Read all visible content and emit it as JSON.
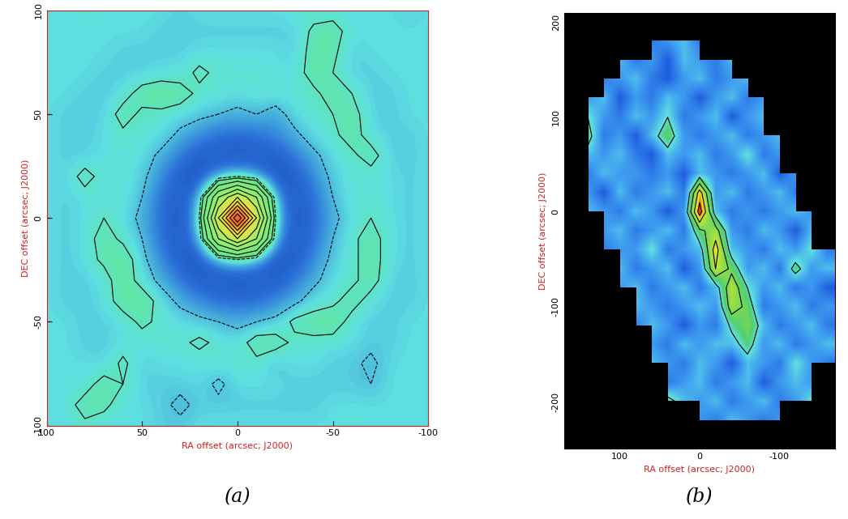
{
  "chart_data": [
    {
      "type": "heatmap",
      "caption": "(a)",
      "x_label": "RA offset (arcsec; J2000)",
      "y_label": "DEC offset (arcsec; J2000)",
      "xlim": [
        100,
        -100
      ],
      "ylim": [
        -100,
        100
      ],
      "xticks": [
        100,
        50,
        0,
        -50,
        -100
      ],
      "yticks": [
        -100,
        -50,
        0,
        50,
        100
      ],
      "x": [
        100,
        90,
        80,
        70,
        60,
        50,
        40,
        30,
        20,
        10,
        0,
        -10,
        -20,
        -30,
        -40,
        -50,
        -60,
        -70,
        -80,
        -90,
        -100
      ],
      "y": [
        100,
        90,
        80,
        70,
        60,
        50,
        40,
        30,
        20,
        10,
        0,
        -10,
        -20,
        -30,
        -40,
        -50,
        -60,
        -70,
        -80,
        -90,
        -100
      ],
      "color_range": [
        -0.15,
        1.0
      ],
      "contour_levels": [
        -0.02,
        0.02,
        0.1,
        0.2,
        0.3,
        0.4,
        0.5,
        0.6,
        0.7,
        0.8,
        0.9
      ],
      "cells": [
        [
          0.0,
          0.0,
          0.01,
          0.0,
          0.0,
          0.0,
          0.0,
          -0.01,
          0.0,
          0.0,
          0.0,
          0.0,
          0.0,
          0.01,
          0.0,
          0.0,
          0.0,
          0.0,
          0.0,
          -0.01,
          0.0
        ],
        [
          0.0,
          0.0,
          0.0,
          0.0,
          0.0,
          0.0,
          -0.01,
          -0.01,
          -0.01,
          -0.01,
          -0.01,
          -0.01,
          -0.01,
          -0.01,
          0.03,
          0.04,
          0.0,
          0.0,
          0.0,
          0.0,
          0.0
        ],
        [
          0.0,
          0.0,
          0.0,
          0.0,
          -0.01,
          -0.01,
          -0.01,
          -0.01,
          0.0,
          0.0,
          0.0,
          0.0,
          0.0,
          -0.01,
          0.04,
          0.03,
          -0.01,
          0.0,
          0.0,
          0.0,
          0.0
        ],
        [
          0.0,
          0.0,
          0.0,
          -0.01,
          -0.01,
          -0.01,
          0.0,
          0.0,
          0.03,
          0.01,
          0.01,
          0.01,
          0.0,
          0.0,
          0.04,
          0.02,
          -0.01,
          -0.01,
          0.0,
          0.0,
          0.0
        ],
        [
          0.0,
          0.0,
          -0.01,
          -0.01,
          0.0,
          0.04,
          0.05,
          0.04,
          0.01,
          0.01,
          0.0,
          0.01,
          0.01,
          0.01,
          0.01,
          0.04,
          0.02,
          -0.01,
          -0.01,
          0.0,
          0.0
        ],
        [
          0.0,
          -0.01,
          -0.01,
          -0.01,
          0.04,
          0.01,
          0.01,
          0.0,
          -0.01,
          -0.02,
          -0.03,
          -0.02,
          -0.04,
          0.0,
          0.01,
          0.02,
          0.04,
          -0.01,
          -0.01,
          0.0,
          0.0
        ],
        [
          0.0,
          -0.01,
          -0.01,
          0.0,
          0.01,
          0.01,
          0.0,
          -0.03,
          -0.05,
          -0.07,
          -0.07,
          -0.07,
          -0.05,
          -0.03,
          0.0,
          0.01,
          0.04,
          0.0,
          -0.01,
          -0.01,
          0.0
        ],
        [
          0.0,
          -0.01,
          -0.01,
          0.0,
          0.01,
          0.0,
          -0.03,
          -0.06,
          -0.09,
          -0.09,
          -0.1,
          -0.09,
          -0.09,
          -0.06,
          -0.03,
          0.0,
          0.01,
          0.04,
          -0.01,
          -0.01,
          0.0
        ],
        [
          0.0,
          -0.01,
          0.04,
          0.0,
          0.01,
          -0.01,
          -0.05,
          -0.09,
          -0.1,
          -0.05,
          -0.02,
          -0.05,
          -0.1,
          -0.09,
          -0.05,
          -0.01,
          0.01,
          0.0,
          0.0,
          -0.01,
          0.0
        ],
        [
          0.0,
          -0.01,
          0.0,
          0.0,
          0.01,
          -0.02,
          -0.07,
          -0.09,
          -0.05,
          0.3,
          0.5,
          0.3,
          -0.05,
          -0.09,
          -0.07,
          -0.02,
          0.01,
          0.01,
          0.0,
          -0.01,
          0.0
        ],
        [
          0.0,
          -0.01,
          0.0,
          0.02,
          0.0,
          -0.03,
          -0.07,
          -0.1,
          -0.02,
          0.5,
          1.0,
          0.5,
          -0.02,
          -0.1,
          -0.07,
          -0.03,
          0.0,
          0.02,
          0.0,
          -0.01,
          0.0
        ],
        [
          0.0,
          -0.01,
          0.0,
          0.04,
          0.01,
          -0.02,
          -0.07,
          -0.09,
          -0.05,
          0.3,
          0.5,
          0.3,
          -0.05,
          -0.09,
          -0.07,
          -0.02,
          0.01,
          0.04,
          0.0,
          -0.01,
          0.0
        ],
        [
          0.0,
          -0.01,
          0.0,
          0.03,
          0.05,
          -0.01,
          -0.05,
          -0.09,
          -0.1,
          -0.05,
          -0.02,
          -0.05,
          -0.1,
          -0.09,
          -0.05,
          -0.01,
          0.01,
          0.04,
          0.0,
          -0.01,
          0.0
        ],
        [
          0.0,
          -0.01,
          -0.01,
          0.0,
          0.05,
          0.0,
          -0.03,
          -0.06,
          -0.09,
          -0.09,
          -0.1,
          -0.09,
          -0.09,
          -0.06,
          -0.03,
          0.0,
          0.01,
          0.04,
          -0.01,
          -0.01,
          0.0
        ],
        [
          0.0,
          -0.01,
          -0.01,
          0.0,
          0.04,
          0.05,
          0.0,
          -0.03,
          -0.05,
          -0.07,
          -0.07,
          -0.07,
          -0.05,
          -0.03,
          0.0,
          0.01,
          0.04,
          0.0,
          -0.01,
          -0.01,
          0.0
        ],
        [
          0.0,
          0.0,
          -0.01,
          -0.01,
          0.0,
          0.03,
          0.01,
          0.0,
          -0.01,
          -0.02,
          -0.03,
          -0.02,
          -0.01,
          0.03,
          0.04,
          0.05,
          0.0,
          -0.01,
          -0.01,
          0.0,
          0.0
        ],
        [
          0.0,
          0.0,
          -0.01,
          -0.01,
          0.0,
          0.0,
          0.01,
          0.01,
          0.03,
          0.01,
          0.0,
          0.04,
          0.04,
          0.01,
          0.01,
          0.0,
          0.0,
          -0.01,
          -0.01,
          0.0,
          0.0
        ],
        [
          0.0,
          0.0,
          0.0,
          -0.01,
          0.03,
          -0.01,
          0.0,
          0.0,
          0.0,
          0.01,
          0.01,
          0.01,
          -0.02,
          0.0,
          0.0,
          -0.01,
          -0.01,
          -0.03,
          0.0,
          0.0,
          0.0
        ],
        [
          0.0,
          0.0,
          0.0,
          0.04,
          0.02,
          -0.01,
          -0.01,
          -0.01,
          0.0,
          -0.03,
          0.0,
          0.0,
          0.0,
          -0.01,
          -0.01,
          -0.01,
          -0.01,
          -0.02,
          0.0,
          0.0,
          0.0
        ],
        [
          0.0,
          0.0,
          0.04,
          0.03,
          0.0,
          0.0,
          -0.01,
          -0.03,
          -0.01,
          -0.01,
          -0.01,
          -0.01,
          -0.01,
          -0.01,
          -0.01,
          0.0,
          0.0,
          0.0,
          0.0,
          0.0,
          0.0
        ],
        [
          0.0,
          0.0,
          0.01,
          0.0,
          0.0,
          0.0,
          -0.01,
          -0.01,
          0.0,
          0.0,
          0.0,
          0.0,
          0.0,
          0.0,
          0.0,
          0.0,
          0.01,
          0.0,
          0.0,
          0.0,
          0.0
        ]
      ]
    },
    {
      "type": "heatmap",
      "caption": "(b)",
      "x_label": "RA offset (arcsec; J2000)",
      "y_label": "DEC offset (arcsec; J2000)",
      "xlim": [
        170,
        -170
      ],
      "ylim": [
        -250,
        210
      ],
      "xticks": [
        100,
        0,
        -100
      ],
      "yticks": [
        -200,
        -100,
        0,
        100,
        200
      ],
      "x": [
        160,
        140,
        120,
        100,
        80,
        60,
        40,
        20,
        0,
        -20,
        -40,
        -60,
        -80,
        -100,
        -120,
        -140,
        -160
      ],
      "y": [
        200,
        180,
        160,
        140,
        120,
        100,
        80,
        60,
        40,
        20,
        0,
        -20,
        -40,
        -60,
        -80,
        -100,
        -120,
        -140,
        -160,
        -180,
        -200,
        -220,
        -240
      ],
      "color_range": [
        -0.4,
        1.0
      ],
      "contour_levels": [
        0.2,
        0.4,
        0.6,
        0.8
      ],
      "cells": [
        [
          null,
          null,
          null,
          null,
          null,
          null,
          null,
          null,
          null,
          null,
          null,
          null,
          null,
          null,
          null,
          null,
          null
        ],
        [
          null,
          null,
          null,
          null,
          null,
          -0.1,
          0.0,
          0.1,
          -0.1,
          null,
          null,
          null,
          null,
          null,
          null,
          null,
          null
        ],
        [
          null,
          null,
          null,
          0.1,
          -0.1,
          0.0,
          -0.2,
          0.1,
          0.0,
          -0.1,
          0.1,
          null,
          null,
          null,
          null,
          null,
          null
        ],
        [
          null,
          null,
          -0.1,
          0.0,
          0.1,
          -0.1,
          -0.2,
          0.0,
          0.1,
          -0.1,
          0.0,
          0.1,
          null,
          null,
          null,
          null,
          null
        ],
        [
          null,
          0.0,
          0.1,
          -0.2,
          0.0,
          -0.1,
          0.1,
          0.0,
          -0.2,
          0.0,
          0.1,
          -0.1,
          0.0,
          null,
          null,
          null,
          null
        ],
        [
          null,
          0.2,
          0.0,
          -0.1,
          0.1,
          0.0,
          0.2,
          -0.1,
          0.0,
          0.1,
          -0.2,
          0.0,
          0.1,
          null,
          null,
          null,
          null
        ],
        [
          null,
          0.3,
          -0.1,
          0.0,
          -0.2,
          0.1,
          0.35,
          0.0,
          -0.1,
          0.0,
          0.1,
          -0.1,
          0.0,
          0.1,
          null,
          null,
          null
        ],
        [
          null,
          0.1,
          0.0,
          0.1,
          -0.1,
          -0.2,
          0.1,
          0.0,
          0.1,
          -0.1,
          0.0,
          0.2,
          -0.1,
          0.0,
          null,
          null,
          null
        ],
        [
          null,
          -0.1,
          0.1,
          0.0,
          0.0,
          -0.1,
          0.0,
          -0.2,
          0.1,
          0.0,
          -0.1,
          0.0,
          0.1,
          -0.2,
          0.0,
          null,
          null
        ],
        [
          null,
          0.0,
          -0.2,
          0.1,
          -0.1,
          0.0,
          0.1,
          -0.1,
          0.7,
          0.0,
          0.1,
          -0.1,
          0.0,
          0.1,
          -0.1,
          null,
          null
        ],
        [
          null,
          0.1,
          0.0,
          -0.1,
          0.1,
          0.0,
          -0.2,
          0.0,
          0.9,
          0.1,
          -0.1,
          0.0,
          -0.1,
          0.0,
          0.1,
          0.0,
          null
        ],
        [
          null,
          null,
          0.0,
          0.1,
          -0.1,
          0.0,
          0.1,
          -0.1,
          0.35,
          0.5,
          0.0,
          -0.1,
          0.1,
          0.0,
          -0.2,
          0.1,
          null
        ],
        [
          null,
          null,
          -0.1,
          0.0,
          0.0,
          0.2,
          -0.1,
          0.0,
          0.1,
          0.7,
          0.1,
          0.0,
          -0.1,
          0.1,
          0.0,
          0.2,
          -0.1
        ],
        [
          null,
          null,
          null,
          0.1,
          -0.1,
          0.0,
          0.1,
          -0.2,
          0.0,
          0.6,
          0.35,
          0.0,
          0.1,
          -0.1,
          0.3,
          0.0,
          0.1
        ],
        [
          null,
          null,
          null,
          0.0,
          0.1,
          -0.1,
          0.0,
          0.1,
          -0.1,
          0.1,
          0.55,
          0.2,
          0.0,
          0.1,
          -0.1,
          0.0,
          -0.2
        ],
        [
          null,
          null,
          null,
          null,
          0.1,
          0.0,
          -0.1,
          0.0,
          0.1,
          0.0,
          0.5,
          0.35,
          -0.1,
          0.0,
          0.1,
          -0.1,
          0.0
        ],
        [
          null,
          null,
          null,
          null,
          -0.1,
          0.1,
          0.0,
          -0.2,
          0.0,
          -0.1,
          0.25,
          0.4,
          0.1,
          -0.1,
          0.0,
          0.1,
          -0.1
        ],
        [
          null,
          null,
          null,
          null,
          null,
          0.0,
          -0.1,
          0.1,
          0.0,
          0.1,
          0.1,
          0.3,
          0.0,
          0.1,
          -0.1,
          0.0,
          0.1
        ],
        [
          null,
          null,
          null,
          null,
          null,
          0.1,
          0.0,
          -0.1,
          0.1,
          0.0,
          -0.2,
          0.1,
          0.0,
          -0.1,
          0.2,
          0.0,
          -0.1
        ],
        [
          null,
          null,
          null,
          null,
          null,
          null,
          -0.1,
          0.0,
          0.1,
          -0.1,
          0.0,
          0.1,
          -0.2,
          0.0,
          0.1,
          0.0,
          null
        ],
        [
          null,
          null,
          null,
          null,
          null,
          null,
          0.3,
          0.1,
          0.0,
          0.1,
          -0.1,
          0.0,
          0.1,
          -0.1,
          0.0,
          0.2,
          null
        ],
        [
          null,
          null,
          null,
          null,
          null,
          null,
          null,
          null,
          0.0,
          -0.1,
          0.1,
          0.0,
          -0.1,
          0.0,
          null,
          null,
          null
        ],
        [
          null,
          null,
          null,
          null,
          null,
          null,
          null,
          null,
          null,
          null,
          null,
          null,
          null,
          null,
          null,
          null,
          null
        ]
      ]
    }
  ]
}
